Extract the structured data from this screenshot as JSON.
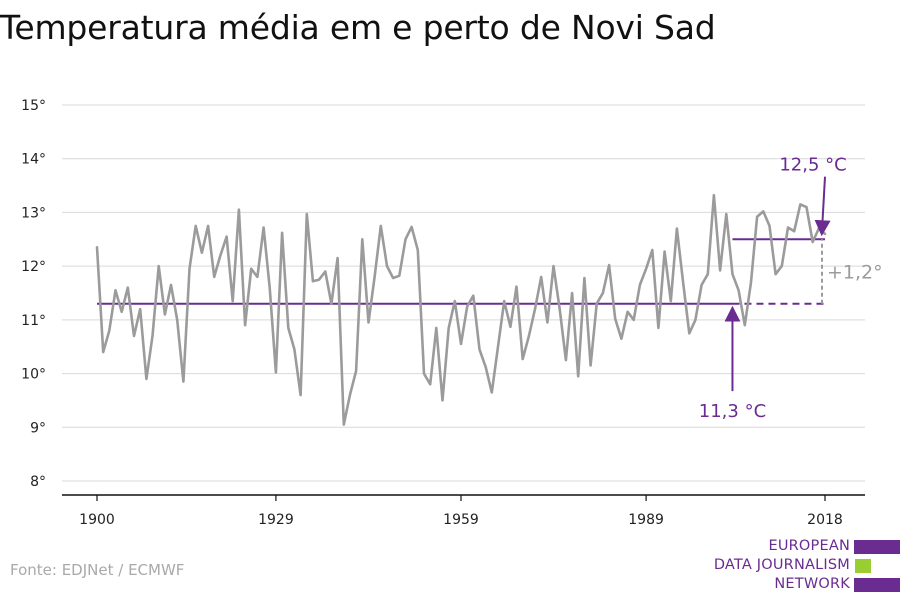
{
  "title": "Temperatura média em e perto de Novi Sad",
  "source": "Fonte: EDJNet / ECMWF",
  "logo": {
    "lines": [
      "EUROPEAN",
      "DATA JOURNALISM",
      "NETWORK"
    ],
    "colors": {
      "purple": "#6a2c91",
      "green": "#9acd32"
    }
  },
  "colors": {
    "series": "#9b9b9b",
    "average": "#6a2c91",
    "grid": "#d9d9d9",
    "axis": "#111111",
    "diff": "#9b9b9b"
  },
  "chart_data": {
    "type": "line",
    "title": "Temperatura média em e perto de Novi Sad",
    "xlim": [
      1900,
      2018
    ],
    "ylim": [
      8,
      15
    ],
    "x_ticks": [
      1900,
      1929,
      1959,
      1989,
      2018
    ],
    "x_tick_labels": [
      "1900",
      "1929",
      "1959",
      "1989",
      "2018"
    ],
    "y_ticks": [
      8,
      9,
      10,
      11,
      12,
      13,
      14,
      15
    ],
    "y_tick_labels": [
      "8°",
      "9°",
      "10°",
      "11°",
      "12°",
      "13°",
      "14°",
      "15°"
    ],
    "grid": true,
    "series": [
      {
        "x": [
          1900,
          1901,
          1902,
          1903,
          1904,
          1905,
          1906,
          1907,
          1908,
          1909,
          1910,
          1911,
          1912,
          1913,
          1914,
          1915,
          1916,
          1917,
          1918,
          1919,
          1920,
          1921,
          1922,
          1923,
          1924,
          1925,
          1926,
          1927,
          1928,
          1929,
          1930,
          1931,
          1932,
          1933,
          1934,
          1935,
          1936,
          1937,
          1938,
          1939,
          1940,
          1941,
          1942,
          1943,
          1944,
          1945,
          1946,
          1947,
          1948,
          1949,
          1950,
          1951,
          1952,
          1953,
          1954,
          1955,
          1956,
          1957,
          1958,
          1959,
          1960,
          1961,
          1962,
          1963,
          1964,
          1965,
          1966,
          1967,
          1968,
          1969,
          1970,
          1971,
          1972,
          1973,
          1974,
          1975,
          1976,
          1977,
          1978,
          1979,
          1980,
          1981,
          1982,
          1983,
          1984,
          1985,
          1986,
          1987,
          1988,
          1989,
          1990,
          1991,
          1992,
          1993,
          1994,
          1995,
          1996,
          1997,
          1998,
          1999,
          2000,
          2001,
          2002,
          2003,
          2004,
          2005,
          2006,
          2007,
          2008,
          2009,
          2010,
          2011,
          2012,
          2013,
          2014,
          2015,
          2016,
          2017,
          2018
        ],
        "values": [
          12.35,
          10.4,
          10.8,
          11.55,
          11.15,
          11.6,
          10.7,
          11.2,
          9.9,
          10.7,
          12.0,
          11.1,
          11.65,
          11.0,
          9.85,
          11.95,
          12.75,
          12.25,
          12.75,
          11.8,
          12.2,
          12.55,
          11.35,
          13.05,
          10.9,
          11.95,
          11.8,
          12.72,
          11.6,
          10.02,
          12.62,
          10.85,
          10.45,
          9.6,
          12.97,
          11.72,
          11.75,
          11.9,
          11.3,
          12.15,
          9.05,
          9.6,
          10.05,
          12.5,
          10.95,
          11.8,
          12.75,
          12.0,
          11.78,
          11.82,
          12.5,
          12.73,
          12.3,
          10.0,
          9.8,
          10.85,
          9.5,
          10.85,
          11.35,
          10.55,
          11.25,
          11.45,
          10.45,
          10.12,
          9.65,
          10.5,
          11.35,
          10.87,
          11.62,
          10.27,
          10.7,
          11.2,
          11.8,
          10.95,
          12.0,
          11.2,
          10.25,
          11.5,
          9.95,
          11.78,
          10.15,
          11.3,
          11.5,
          12.02,
          11.02,
          10.65,
          11.15,
          11.0,
          11.65,
          11.95,
          12.3,
          10.85,
          12.27,
          11.35,
          12.7,
          11.7,
          10.75,
          11.0,
          11.65,
          11.85,
          13.32,
          11.92,
          12.97,
          11.85,
          11.55,
          10.9,
          11.7,
          12.92,
          13.02,
          12.75,
          11.85,
          12.0,
          12.72,
          12.65,
          13.15,
          13.1,
          12.45,
          12.7,
          12.6
        ]
      }
    ],
    "reference_lines": [
      {
        "value": 11.3,
        "from": 1900,
        "to": 2018,
        "dashed_from": 2003,
        "label": "11,3 °C",
        "label_x": 2003,
        "label_y": 9.45
      },
      {
        "value": 12.5,
        "from": 2003,
        "to": 2018,
        "label": "12,5 °C",
        "label_x": 2018,
        "label_y": 14.0
      }
    ],
    "difference": {
      "x": 2018,
      "from": 11.3,
      "to": 12.5,
      "label": "+1,2°"
    }
  }
}
